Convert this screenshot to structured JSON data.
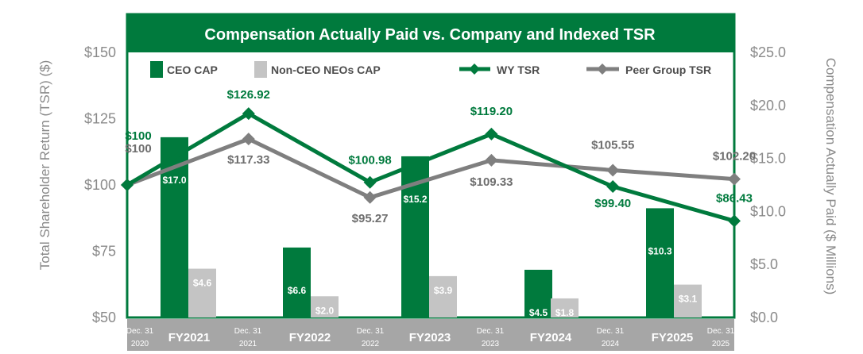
{
  "chart_data": {
    "type": "combo-bar-line",
    "title": "Compensation Actually Paid vs. Company and Indexed TSR",
    "y_left": {
      "label": "Total Shareholder Return (TSR) ($)",
      "range": [
        50,
        150
      ],
      "ticks": [
        "$50",
        "$75",
        "$100",
        "$125",
        "$150"
      ],
      "tick_values": [
        50,
        75,
        100,
        125,
        150
      ]
    },
    "y_right": {
      "label": "Compensation Actually Paid ($ Millions)",
      "range": [
        0,
        25
      ],
      "ticks": [
        "$0.0",
        "$5.0",
        "$10.0",
        "$15.0",
        "$20.0",
        "$25.0"
      ],
      "tick_values": [
        0,
        5,
        10,
        15,
        20,
        25
      ]
    },
    "fiscal_years": [
      "FY2021",
      "FY2022",
      "FY2023",
      "FY2024",
      "FY2025"
    ],
    "dates": [
      {
        "top": "Dec. 31",
        "bottom": "2020"
      },
      {
        "top": "Dec. 31",
        "bottom": "2021"
      },
      {
        "top": "Dec. 31",
        "bottom": "2022"
      },
      {
        "top": "Dec. 31",
        "bottom": "2023"
      },
      {
        "top": "Dec. 31",
        "bottom": "2024"
      },
      {
        "top": "Dec. 31",
        "bottom": "2025"
      }
    ],
    "bar_series": [
      {
        "name": "CEO CAP",
        "color": "#007a3d",
        "values": [
          17.0,
          6.6,
          15.2,
          4.5,
          10.3
        ],
        "labels": [
          "$17.0",
          "$6.6",
          "$15.2",
          "$4.5",
          "$10.3"
        ]
      },
      {
        "name": "Non-CEO NEOs CAP",
        "color": "#c4c4c4",
        "values": [
          4.6,
          2.0,
          3.9,
          1.8,
          3.1
        ],
        "labels": [
          "$4.6",
          "$2.0",
          "$3.9",
          "$1.8",
          "$3.1"
        ]
      }
    ],
    "line_series": [
      {
        "name": "WY TSR",
        "color": "#007a3d",
        "values": [
          100,
          126.92,
          100.98,
          119.2,
          99.4,
          86.43
        ],
        "labels": [
          "$100",
          "$126.92",
          "$100.98",
          "$119.20",
          "$99.40",
          "$86.43"
        ]
      },
      {
        "name": "Peer Group TSR",
        "color": "#7f7f7f",
        "values": [
          100,
          117.33,
          95.27,
          109.33,
          105.55,
          102.2
        ],
        "labels": [
          "$100",
          "$117.33",
          "$95.27",
          "$109.33",
          "$105.55",
          "$102.20"
        ]
      }
    ],
    "legend": [
      "CEO CAP",
      "Non-CEO NEOs CAP",
      "WY TSR",
      "Peer Group TSR"
    ]
  }
}
